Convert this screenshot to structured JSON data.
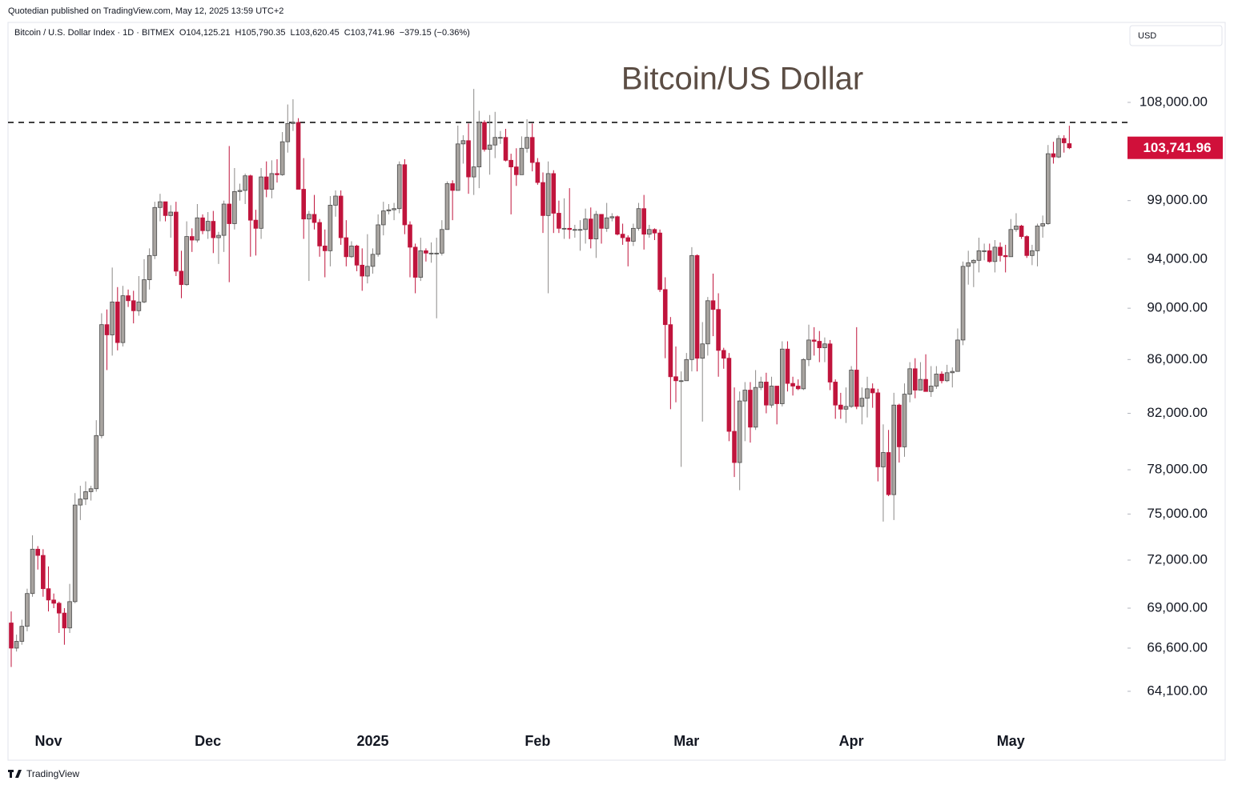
{
  "header": {
    "publisher": "Quotedian published on TradingView.com, May 12, 2025 13:59 UTC+2",
    "symbol": "Bitcoin / U.S. Dollar Index · 1D · BITMEX",
    "ohlc": [
      {
        "label": "O",
        "value": "104,125.21"
      },
      {
        "label": "H",
        "value": "105,790.35"
      },
      {
        "label": "L",
        "value": "103,620.45"
      },
      {
        "label": "C",
        "value": "103,741.96"
      }
    ],
    "change": "−379.15 (−0.36%)",
    "currency": "USD",
    "brand": "TradingView"
  },
  "chart_data": {
    "type": "candlestick",
    "title": "Bitcoin/US Dollar",
    "log_scale": true,
    "up_color": "#a8a4a0",
    "up_border": "#4a4a4a",
    "down_color": "#c0143c",
    "price_label": "103,741.96",
    "price_label_color": "#d0103a",
    "hline": 106100,
    "ylim": [
      62040,
      115930
    ],
    "yticks": [
      {
        "value": 64100,
        "label": "64,100.00"
      },
      {
        "value": 66600,
        "label": "66,600.00"
      },
      {
        "value": 69000,
        "label": "69,000.00"
      },
      {
        "value": 72000,
        "label": "72,000.00"
      },
      {
        "value": 75000,
        "label": "75,000.00"
      },
      {
        "value": 78000,
        "label": "78,000.00"
      },
      {
        "value": 82000,
        "label": "82,000.00"
      },
      {
        "value": 86000,
        "label": "86,000.00"
      },
      {
        "value": 90000,
        "label": "90,000.00"
      },
      {
        "value": 94000,
        "label": "94,000.00"
      },
      {
        "value": 99000,
        "label": "99,000.00"
      },
      {
        "value": 108000,
        "label": "108,000.00"
      }
    ],
    "categories": [
      null,
      null,
      null,
      null,
      null,
      null,
      null,
      "Nov",
      null,
      null,
      null,
      null,
      null,
      null,
      null,
      null,
      null,
      null,
      null,
      null,
      null,
      null,
      null,
      null,
      null,
      null,
      null,
      null,
      null,
      null,
      null,
      null,
      null,
      null,
      null,
      null,
      null,
      "Dec",
      null,
      null,
      null,
      null,
      null,
      null,
      null,
      null,
      null,
      null,
      null,
      null,
      null,
      null,
      null,
      null,
      null,
      null,
      null,
      null,
      null,
      null,
      null,
      null,
      null,
      null,
      null,
      null,
      null,
      null,
      "2025",
      null,
      null,
      null,
      null,
      null,
      null,
      null,
      null,
      null,
      null,
      null,
      null,
      null,
      null,
      null,
      null,
      null,
      null,
      null,
      null,
      null,
      null,
      null,
      null,
      null,
      null,
      null,
      null,
      null,
      null,
      "Feb",
      null,
      null,
      null,
      null,
      null,
      null,
      null,
      null,
      null,
      null,
      null,
      null,
      null,
      null,
      null,
      null,
      null,
      null,
      null,
      null,
      null,
      null,
      null,
      null,
      null,
      null,
      null,
      "Mar",
      null,
      null,
      null,
      null,
      null,
      null,
      null,
      null,
      null,
      null,
      null,
      null,
      null,
      null,
      null,
      null,
      null,
      null,
      null,
      null,
      null,
      null,
      null,
      null,
      null,
      null,
      null,
      null,
      null,
      null,
      "Apr",
      null,
      null,
      null,
      null,
      null,
      null,
      null,
      null,
      null,
      null,
      null,
      null,
      null,
      null,
      null,
      null,
      null,
      null,
      null,
      null,
      null,
      null,
      null,
      null,
      null,
      null,
      null,
      null,
      null,
      "May",
      null,
      null,
      null,
      null,
      null,
      null,
      null,
      null,
      null,
      null,
      null
    ],
    "open": [
      68100,
      66600,
      67000,
      67900,
      69900,
      72700,
      72300,
      70200,
      69500,
      69300,
      68700,
      67800,
      69400,
      75600,
      76000,
      76500,
      76700,
      80400,
      88700,
      87900,
      90500,
      87300,
      91000,
      90600,
      89800,
      90500,
      92300,
      94300,
      98400,
      98900,
      97700,
      98000,
      93000,
      91900,
      95900,
      95600,
      97500,
      96400,
      97200,
      95800,
      96000,
      98700,
      97000,
      99800,
      99900,
      101200,
      97300,
      96600,
      101100,
      100000,
      101400,
      101300,
      104300,
      106000,
      106100,
      100000,
      97400,
      97800,
      97100,
      95100,
      94700,
      98600,
      99400,
      95800,
      94200,
      95100,
      93500,
      92600,
      93400,
      94400,
      96900,
      98100,
      98200,
      98300,
      102200,
      96900,
      95000,
      92500,
      94700,
      94500,
      94500,
      94500,
      96500,
      100500,
      99900,
      104100,
      104400,
      101100,
      102000,
      106100,
      103600,
      104000,
      104700,
      104700,
      102600,
      102000,
      101300,
      103700,
      104700,
      102400,
      100600,
      97700,
      101400,
      97900,
      96600,
      96600,
      96500,
      96500,
      96500,
      97400,
      95700,
      97800,
      96600,
      97500,
      97600,
      96100,
      95800,
      95500,
      96600,
      98300,
      96100,
      96500,
      96200,
      91500,
      88700,
      84700,
      84400,
      84400,
      86000,
      94300,
      86100,
      87200,
      90600,
      89900,
      86700,
      86100,
      80700,
      78500,
      82900,
      83700,
      81000,
      83900,
      84300,
      82600,
      84000,
      82700,
      86800,
      84200,
      84000,
      83800,
      86000,
      87500,
      87400,
      86900,
      87200,
      84300,
      82600,
      82300,
      82500,
      85200,
      82500,
      83100,
      83800,
      83500,
      78200,
      79200,
      76300,
      82600,
      79600,
      83400,
      85300,
      83700,
      84500,
      83600,
      84000,
      84900,
      84400,
      85000,
      85100,
      87500,
      93400,
      93700,
      93900,
      94700,
      94700,
      93800,
      95000,
      94300,
      94200,
      96500,
      96800,
      95900,
      94300,
      94700,
      96800,
      97000,
      103200,
      102900,
      104600,
      104125.21
    ],
    "high": [
      68800,
      67400,
      68300,
      70200,
      73600,
      72900,
      72700,
      71600,
      69900,
      69400,
      69000,
      70500,
      76400,
      76900,
      77200,
      76900,
      81500,
      89600,
      89900,
      93300,
      91700,
      91800,
      91500,
      91400,
      92600,
      94000,
      94900,
      98900,
      99600,
      98900,
      98600,
      98900,
      94700,
      97200,
      96600,
      98700,
      97800,
      98000,
      98100,
      96300,
      99000,
      103900,
      101900,
      100500,
      101400,
      101300,
      98200,
      101900,
      102500,
      102600,
      102700,
      105200,
      107800,
      108300,
      106500,
      102800,
      98100,
      99500,
      97400,
      96500,
      99400,
      99900,
      99900,
      97300,
      95500,
      95200,
      94900,
      96100,
      94900,
      97800,
      98900,
      98700,
      98800,
      102500,
      102700,
      97200,
      95300,
      95800,
      94900,
      95400,
      95800,
      97300,
      100700,
      100800,
      105800,
      104900,
      106000,
      109300,
      107200,
      106300,
      106800,
      107100,
      105300,
      105500,
      103200,
      103700,
      104800,
      106400,
      106000,
      102800,
      101500,
      102500,
      101700,
      99000,
      99200,
      100100,
      96900,
      97300,
      98300,
      98400,
      98100,
      97800,
      98800,
      97900,
      97700,
      97000,
      96000,
      97000,
      98800,
      99500,
      96900,
      96600,
      96500,
      92500,
      89300,
      87000,
      85100,
      86500,
      95000,
      94400,
      88900,
      90900,
      92800,
      91200,
      86900,
      86500,
      83900,
      83600,
      84300,
      84300,
      85200,
      84700,
      85000,
      84700,
      84000,
      87400,
      87400,
      84700,
      84500,
      86100,
      88700,
      88500,
      88200,
      87700,
      87500,
      84500,
      83500,
      83900,
      85500,
      88500,
      83900,
      84700,
      84200,
      83800,
      81200,
      80800,
      83500,
      82700,
      84200,
      85800,
      86100,
      85800,
      86400,
      85500,
      85500,
      85100,
      85600,
      85400,
      88400,
      93800,
      94700,
      94000,
      95800,
      95300,
      95300,
      95600,
      95400,
      95200,
      97400,
      97900,
      96900,
      96000,
      95200,
      97000,
      97700,
      104000,
      104300,
      104900,
      104900,
      105790.35
    ],
    "low": [
      65500,
      66400,
      66800,
      67600,
      69700,
      71400,
      69700,
      68800,
      69000,
      67500,
      66800,
      67500,
      69300,
      74600,
      75600,
      75900,
      76500,
      80200,
      85200,
      86300,
      86700,
      87000,
      90100,
      88800,
      89400,
      90400,
      91500,
      94000,
      97200,
      97200,
      95800,
      92600,
      90800,
      91800,
      94600,
      95400,
      96100,
      95700,
      94500,
      93600,
      94600,
      92100,
      96500,
      99000,
      98700,
      94200,
      94300,
      95700,
      99300,
      99200,
      100600,
      101200,
      103300,
      105300,
      100000,
      95700,
      92200,
      96500,
      94200,
      92500,
      93400,
      97600,
      95200,
      93400,
      94100,
      93000,
      91400,
      92000,
      92800,
      94200,
      96000,
      97800,
      97300,
      97900,
      96100,
      92500,
      91200,
      92200,
      93800,
      93700,
      89200,
      94300,
      96500,
      97300,
      99900,
      102300,
      99600,
      99500,
      100100,
      103400,
      101300,
      102800,
      104100,
      102500,
      97800,
      100300,
      101300,
      103300,
      101600,
      100400,
      96200,
      91200,
      96200,
      96200,
      95700,
      95700,
      95800,
      94700,
      95300,
      94900,
      94100,
      95300,
      96300,
      97200,
      96000,
      95200,
      93400,
      95100,
      96400,
      94800,
      95800,
      95600,
      91300,
      86100,
      82300,
      82800,
      78200,
      84400,
      85100,
      85100,
      81400,
      86300,
      87800,
      84700,
      85300,
      80000,
      77500,
      76600,
      80000,
      79900,
      80800,
      83700,
      82000,
      82400,
      81200,
      82500,
      83600,
      83300,
      83700,
      83700,
      85500,
      86300,
      85800,
      85800,
      83700,
      81600,
      81600,
      81300,
      82400,
      82300,
      81200,
      81700,
      82400,
      77200,
      74500,
      76200,
      74600,
      78500,
      78900,
      82800,
      83100,
      83700,
      83600,
      83200,
      83800,
      84200,
      84300,
      83900,
      85100,
      87100,
      91900,
      91700,
      92900,
      93900,
      93700,
      92900,
      93800,
      92900,
      94200,
      96300,
      95700,
      94100,
      93500,
      93400,
      95800,
      96900,
      102300,
      102800,
      103300,
      103620.45
    ],
    "close": [
      66600,
      67000,
      67900,
      69900,
      72700,
      72300,
      70200,
      69500,
      69300,
      68700,
      67800,
      69400,
      75600,
      76000,
      76500,
      76700,
      80400,
      88700,
      87900,
      90500,
      87300,
      91000,
      90600,
      89800,
      90500,
      92300,
      94300,
      98400,
      98900,
      97700,
      98000,
      93000,
      91900,
      95900,
      95600,
      97500,
      96400,
      97200,
      95800,
      96000,
      98700,
      97000,
      99800,
      99900,
      101200,
      97300,
      96600,
      101100,
      100000,
      101400,
      101300,
      104300,
      106000,
      106100,
      100000,
      97400,
      97800,
      97100,
      95100,
      94700,
      98600,
      99400,
      95800,
      94200,
      95100,
      93500,
      92600,
      93400,
      94400,
      96900,
      98100,
      98200,
      98300,
      102200,
      96900,
      95000,
      92500,
      94700,
      94500,
      94500,
      94500,
      96500,
      100500,
      99900,
      104100,
      104400,
      101100,
      102000,
      106100,
      103600,
      104000,
      104700,
      104700,
      102600,
      102000,
      101300,
      103700,
      104700,
      102400,
      100600,
      97700,
      101400,
      97900,
      96600,
      96600,
      96500,
      96500,
      96500,
      97400,
      95700,
      97800,
      96600,
      97500,
      97600,
      96100,
      95800,
      95500,
      96600,
      98300,
      96100,
      96500,
      96200,
      91500,
      88700,
      84700,
      84400,
      84400,
      86000,
      94300,
      86100,
      87200,
      90600,
      89900,
      86700,
      86100,
      80700,
      78500,
      82900,
      83700,
      81000,
      83900,
      84300,
      82600,
      84000,
      82700,
      86800,
      84200,
      84000,
      83800,
      86000,
      87500,
      87400,
      86900,
      87200,
      84300,
      82600,
      82300,
      82500,
      85200,
      82500,
      83100,
      83800,
      83500,
      78200,
      79200,
      76300,
      82600,
      79600,
      83400,
      85300,
      83700,
      84500,
      83600,
      84000,
      84900,
      84400,
      85000,
      85100,
      87500,
      93400,
      93700,
      93900,
      94700,
      94700,
      93800,
      95000,
      94300,
      94200,
      96500,
      96800,
      95900,
      94300,
      94700,
      96800,
      97000,
      103200,
      102900,
      104600,
      104200,
      103741.96
    ]
  }
}
